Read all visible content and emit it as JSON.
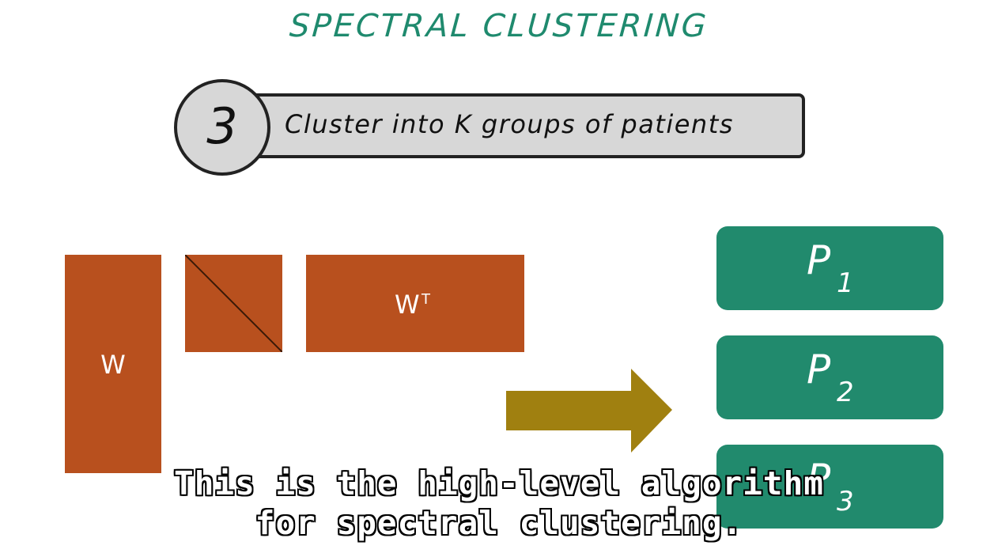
{
  "title": "SPECTRAL CLUSTERING",
  "step": {
    "number": "3",
    "text": "Cluster into K groups of patients"
  },
  "matrices": {
    "w_label": "W",
    "wt_label": "W",
    "wt_superscript": "T"
  },
  "clusters": [
    {
      "letter": "P",
      "sub": "1"
    },
    {
      "letter": "P",
      "sub": "2"
    },
    {
      "letter": "P",
      "sub": "3"
    }
  ],
  "caption": {
    "line1": "This is the high-level algorithm",
    "line2": "for spectral clustering."
  },
  "colors": {
    "title": "#1f8a6e",
    "matrix": "#b8501e",
    "arrow": "#a08010",
    "cluster": "#218a6d",
    "step_fill": "#d7d7d7"
  }
}
